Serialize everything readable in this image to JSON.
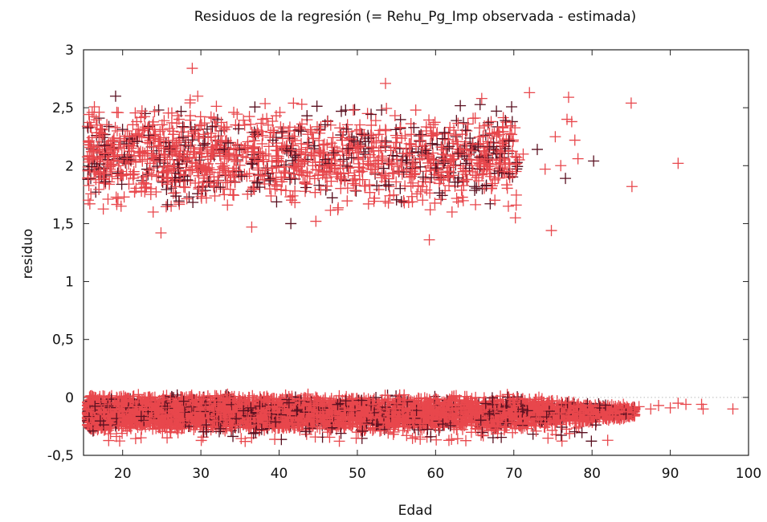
{
  "chart_data": {
    "type": "scatter",
    "title": "Residuos de la regresión (= Rehu_Pg_Imp observada - estimada)",
    "xlabel": "Edad",
    "ylabel": "residuo",
    "xlim": [
      15,
      100
    ],
    "ylim": [
      -0.5,
      3
    ],
    "xticks": [
      20,
      30,
      40,
      50,
      60,
      70,
      80,
      90,
      100
    ],
    "xtick_labels": [
      "20",
      "30",
      "40",
      "50",
      "60",
      "70",
      "80",
      "90",
      "100"
    ],
    "yticks": [
      -0.5,
      0,
      0.5,
      1,
      1.5,
      2,
      2.5,
      3
    ],
    "ytick_labels": [
      "-0,5",
      "0",
      "0,5",
      "1",
      "1,5",
      "2",
      "2,5",
      "3"
    ],
    "grid": false,
    "marker": "plus",
    "colors": {
      "primary": "#e8474c",
      "secondary": "#5a1020"
    },
    "series": [
      {
        "points": [
          [
            15.5,
            2.34
          ],
          [
            16.2,
            2.06
          ],
          [
            17,
            2.41
          ],
          [
            17.4,
            2.31
          ],
          [
            18,
            2.1
          ],
          [
            18.3,
            1.86
          ],
          [
            18.8,
            2.22
          ],
          [
            19.1,
            2.6
          ],
          [
            19.5,
            2.0
          ],
          [
            19.8,
            1.65
          ],
          [
            20.2,
            2.15
          ],
          [
            20.6,
            2.3
          ],
          [
            21,
            2.05
          ],
          [
            21.3,
            1.92
          ],
          [
            21.8,
            2.38
          ],
          [
            22,
            2.12
          ],
          [
            22.4,
            1.78
          ],
          [
            22.9,
            2.45
          ],
          [
            23.2,
            2.2
          ],
          [
            23.5,
            2.02
          ],
          [
            23.9,
            1.6
          ],
          [
            24.2,
            2.27
          ],
          [
            24.6,
            2.48
          ],
          [
            24.9,
            1.42
          ],
          [
            25.3,
            2.1
          ],
          [
            25.6,
            1.95
          ],
          [
            26,
            2.32
          ],
          [
            26.4,
            2.17
          ],
          [
            26.8,
            1.88
          ],
          [
            27.2,
            2.4
          ],
          [
            27.6,
            2.05
          ],
          [
            28.1,
            2.2
          ],
          [
            28.5,
            1.73
          ],
          [
            28.9,
            2.84
          ],
          [
            29.2,
            2.12
          ],
          [
            29.6,
            2.6
          ],
          [
            30,
            1.98
          ],
          [
            30.5,
            2.25
          ],
          [
            30.9,
            2.08
          ],
          [
            31.3,
            2.42
          ],
          [
            31.7,
            1.85
          ],
          [
            32.1,
            2.18
          ],
          [
            32.6,
            2.3
          ],
          [
            33,
            2.0
          ],
          [
            33.4,
            1.66
          ],
          [
            33.8,
            2.2
          ],
          [
            34.2,
            2.46
          ],
          [
            34.7,
            2.05
          ],
          [
            35.1,
            1.92
          ],
          [
            35.6,
            2.35
          ],
          [
            36,
            2.12
          ],
          [
            36.5,
            1.47
          ],
          [
            37,
            2.27
          ],
          [
            37.4,
            1.98
          ],
          [
            37.9,
            2.4
          ],
          [
            38.3,
            2.1
          ],
          [
            38.8,
            1.8
          ],
          [
            39.2,
            2.22
          ],
          [
            39.7,
            2.03
          ],
          [
            40.1,
            2.46
          ],
          [
            40.6,
            1.9
          ],
          [
            41,
            2.17
          ],
          [
            41.5,
            1.5
          ],
          [
            42,
            2.3
          ],
          [
            42.4,
            2.05
          ],
          [
            42.9,
            2.53
          ],
          [
            43.3,
            1.86
          ],
          [
            43.8,
            2.2
          ],
          [
            44.3,
            2.0
          ],
          [
            44.7,
            1.52
          ],
          [
            45.2,
            2.28
          ],
          [
            45.7,
            2.1
          ],
          [
            46.1,
            1.95
          ],
          [
            46.6,
            2.35
          ],
          [
            47.1,
            2.05
          ],
          [
            47.5,
            1.62
          ],
          [
            48,
            2.22
          ],
          [
            48.5,
            2.48
          ],
          [
            48.9,
            1.98
          ],
          [
            49.4,
            2.15
          ],
          [
            49.9,
            2.3
          ],
          [
            50.3,
            1.88
          ],
          [
            50.8,
            2.12
          ],
          [
            51.3,
            2.45
          ],
          [
            51.7,
            2.0
          ],
          [
            52.2,
            1.72
          ],
          [
            52.7,
            2.27
          ],
          [
            53.1,
            2.48
          ],
          [
            53.6,
            2.71
          ],
          [
            54.1,
            2.05
          ],
          [
            54.5,
            1.93
          ],
          [
            55,
            2.2
          ],
          [
            55.5,
            2.32
          ],
          [
            56,
            1.68
          ],
          [
            56.4,
            2.1
          ],
          [
            56.9,
            2.27
          ],
          [
            57.4,
            1.98
          ],
          [
            57.8,
            2.12
          ],
          [
            58.3,
            1.82
          ],
          [
            58.8,
            2.3
          ],
          [
            59.2,
            1.36
          ],
          [
            59.7,
            2.05
          ],
          [
            60.2,
            2.18
          ],
          [
            60.7,
            1.9
          ],
          [
            61.1,
            2.28
          ],
          [
            61.6,
            2.0
          ],
          [
            62.1,
            1.6
          ],
          [
            62.6,
            2.25
          ],
          [
            63,
            2.12
          ],
          [
            63.5,
            1.95
          ],
          [
            64,
            2.3
          ],
          [
            64.5,
            2.05
          ],
          [
            65,
            1.82
          ],
          [
            65.4,
            2.18
          ],
          [
            65.9,
            2.58
          ],
          [
            66.4,
            2.05
          ],
          [
            66.9,
            1.93
          ],
          [
            67.4,
            2.2
          ],
          [
            67.8,
            2.1
          ],
          [
            68.3,
            1.98
          ],
          [
            68.8,
            2.05
          ],
          [
            69.3,
            1.65
          ],
          [
            69.8,
            2.38
          ],
          [
            70.2,
            1.55
          ],
          [
            70.7,
            2.05
          ],
          [
            71.2,
            2.1
          ],
          [
            72,
            2.63
          ],
          [
            73,
            2.14
          ],
          [
            74,
            1.97
          ],
          [
            74.8,
            1.44
          ],
          [
            75.3,
            2.25
          ],
          [
            76,
            2.0
          ],
          [
            76.6,
            1.89
          ],
          [
            77,
            2.59
          ],
          [
            77.4,
            2.38
          ],
          [
            77.8,
            2.22
          ],
          [
            78.2,
            2.06
          ],
          [
            80.2,
            2.04
          ],
          [
            85,
            2.54
          ],
          [
            85.1,
            1.82
          ],
          [
            91,
            2.02
          ],
          [
            76.8,
            2.4
          ],
          [
            66.5,
            2.05
          ],
          [
            70.3,
            1.66
          ],
          [
            19.3,
            2.3
          ],
          [
            26.2,
            1.65
          ],
          [
            41.2,
            2.3
          ],
          [
            55.8,
            2.08
          ],
          [
            63.7,
            2.08
          ],
          [
            67.1,
            2.38
          ]
        ]
      }
    ]
  }
}
